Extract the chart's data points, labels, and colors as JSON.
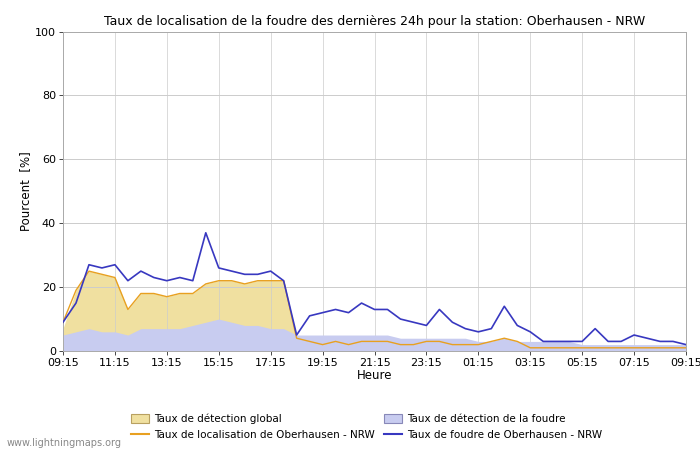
{
  "title": "Taux de localisation de la foudre des dernières 24h pour la station: Oberhausen - NRW",
  "xlabel": "Heure",
  "ylabel": "Pourcent  [%]",
  "ylim": [
    0,
    100
  ],
  "yticks": [
    0,
    20,
    40,
    60,
    80,
    100
  ],
  "x_labels": [
    "09:15",
    "11:15",
    "13:15",
    "15:15",
    "17:15",
    "19:15",
    "21:15",
    "23:15",
    "01:15",
    "03:15",
    "05:15",
    "07:15",
    "09:15"
  ],
  "watermark": "www.lightningmaps.org",
  "legend_row1": [
    "Taux de détection global",
    "Taux de localisation de Oberhausen - NRW"
  ],
  "legend_row2": [
    "Taux de détection de la foudre",
    "Taux de foudre de Oberhausen - NRW"
  ],
  "fill_global_color": "#f0e0a0",
  "fill_foudre_color": "#c8ccf0",
  "line_loc_color": "#e8a020",
  "line_foudre_color": "#3838c0",
  "detection_global": [
    7,
    19,
    25,
    24,
    23,
    13,
    18,
    18,
    17,
    18,
    18,
    21,
    22,
    22,
    21,
    22,
    22,
    22,
    4,
    3,
    2,
    3,
    2,
    3,
    3,
    3,
    2,
    2,
    3,
    3,
    2,
    2,
    2,
    3,
    4,
    3,
    1,
    1,
    1,
    1,
    1,
    1,
    1,
    1,
    1,
    1,
    1,
    1,
    1
  ],
  "localisation_nrw": [
    9,
    19,
    25,
    24,
    23,
    13,
    18,
    18,
    17,
    18,
    18,
    21,
    22,
    22,
    21,
    22,
    22,
    22,
    4,
    3,
    2,
    3,
    2,
    3,
    3,
    3,
    2,
    2,
    3,
    3,
    2,
    2,
    2,
    3,
    4,
    3,
    1,
    1,
    1,
    1,
    1,
    1,
    1,
    1,
    1,
    1,
    1,
    1,
    1
  ],
  "detection_foudre": [
    5,
    6,
    7,
    6,
    6,
    5,
    7,
    7,
    7,
    7,
    8,
    9,
    10,
    9,
    8,
    8,
    7,
    7,
    5,
    5,
    5,
    5,
    5,
    5,
    5,
    5,
    4,
    4,
    4,
    4,
    4,
    4,
    3,
    3,
    4,
    3,
    3,
    3,
    3,
    3,
    2,
    2,
    2,
    2,
    2,
    2,
    2,
    2,
    2
  ],
  "foudre_nrw": [
    9,
    15,
    27,
    26,
    27,
    22,
    25,
    23,
    22,
    23,
    22,
    37,
    26,
    25,
    24,
    24,
    25,
    22,
    5,
    11,
    12,
    13,
    12,
    15,
    13,
    13,
    10,
    9,
    8,
    13,
    9,
    7,
    6,
    7,
    14,
    8,
    6,
    3,
    3,
    3,
    3,
    7,
    3,
    3,
    5,
    4,
    3,
    3,
    2
  ]
}
